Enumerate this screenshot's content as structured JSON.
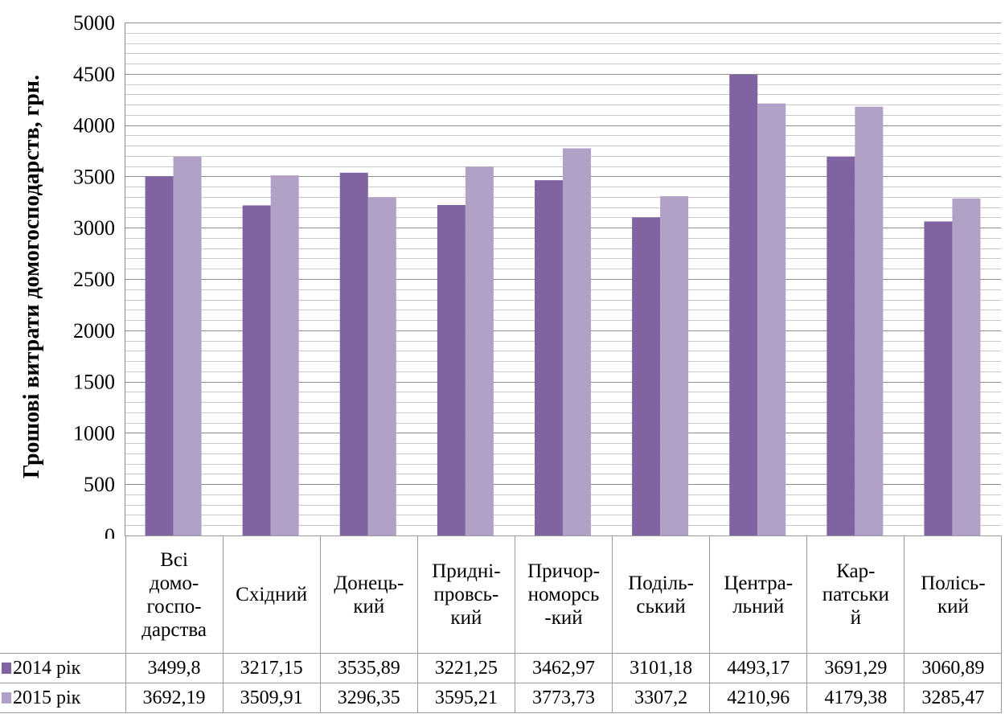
{
  "chart_data": {
    "type": "bar",
    "ylabel": "Грошові витрати  домогосподарств, грн.",
    "ylim": [
      0,
      5000
    ],
    "yticks": [
      0,
      500,
      1000,
      1500,
      2000,
      2500,
      3000,
      3500,
      4000,
      4500,
      5000
    ],
    "grid": "horizontal",
    "legend": "data-table",
    "categories": [
      "Всі домо-госпо-дарства",
      "Східний",
      "Донець-кий",
      "Придні-провсь-кий",
      "Причор-номорсь -кий",
      "Поділь-ський",
      "Центра-льний",
      "Кар-патськи й",
      "Полісь-кий"
    ],
    "category_lines": [
      [
        "Всі",
        "домо-",
        "госпо-",
        "дарства"
      ],
      [
        "Східний"
      ],
      [
        "Донець-",
        "кий"
      ],
      [
        "Придні-",
        "провсь-",
        "кий"
      ],
      [
        "Причор-",
        "номорсь",
        "-кий"
      ],
      [
        "Поділь-",
        "ський"
      ],
      [
        "Центра-",
        "льний"
      ],
      [
        "Кар-",
        "патськи",
        "й"
      ],
      [
        "Полісь-",
        "кий"
      ]
    ],
    "series": [
      {
        "name": "2014 рік",
        "color": "#8064a2",
        "values": [
          3499.8,
          3217.15,
          3535.89,
          3221.25,
          3462.97,
          3101.18,
          4493.17,
          3691.29,
          3060.89
        ],
        "labels": [
          "3499,8",
          "3217,15",
          "3535,89",
          "3221,25",
          "3462,97",
          "3101,18",
          "4493,17",
          "3691,29",
          "3060,89"
        ]
      },
      {
        "name": "2015 рік",
        "color": "#b2a1c7",
        "values": [
          3692.19,
          3509.91,
          3296.35,
          3595.21,
          3773.73,
          3307.2,
          4210.96,
          4179.38,
          3285.47
        ],
        "labels": [
          "3692,19",
          "3509,91",
          "3296,35",
          "3595,21",
          "3773,73",
          "3307,2",
          "4210,96",
          "4179,38",
          "3285,47"
        ]
      }
    ]
  }
}
